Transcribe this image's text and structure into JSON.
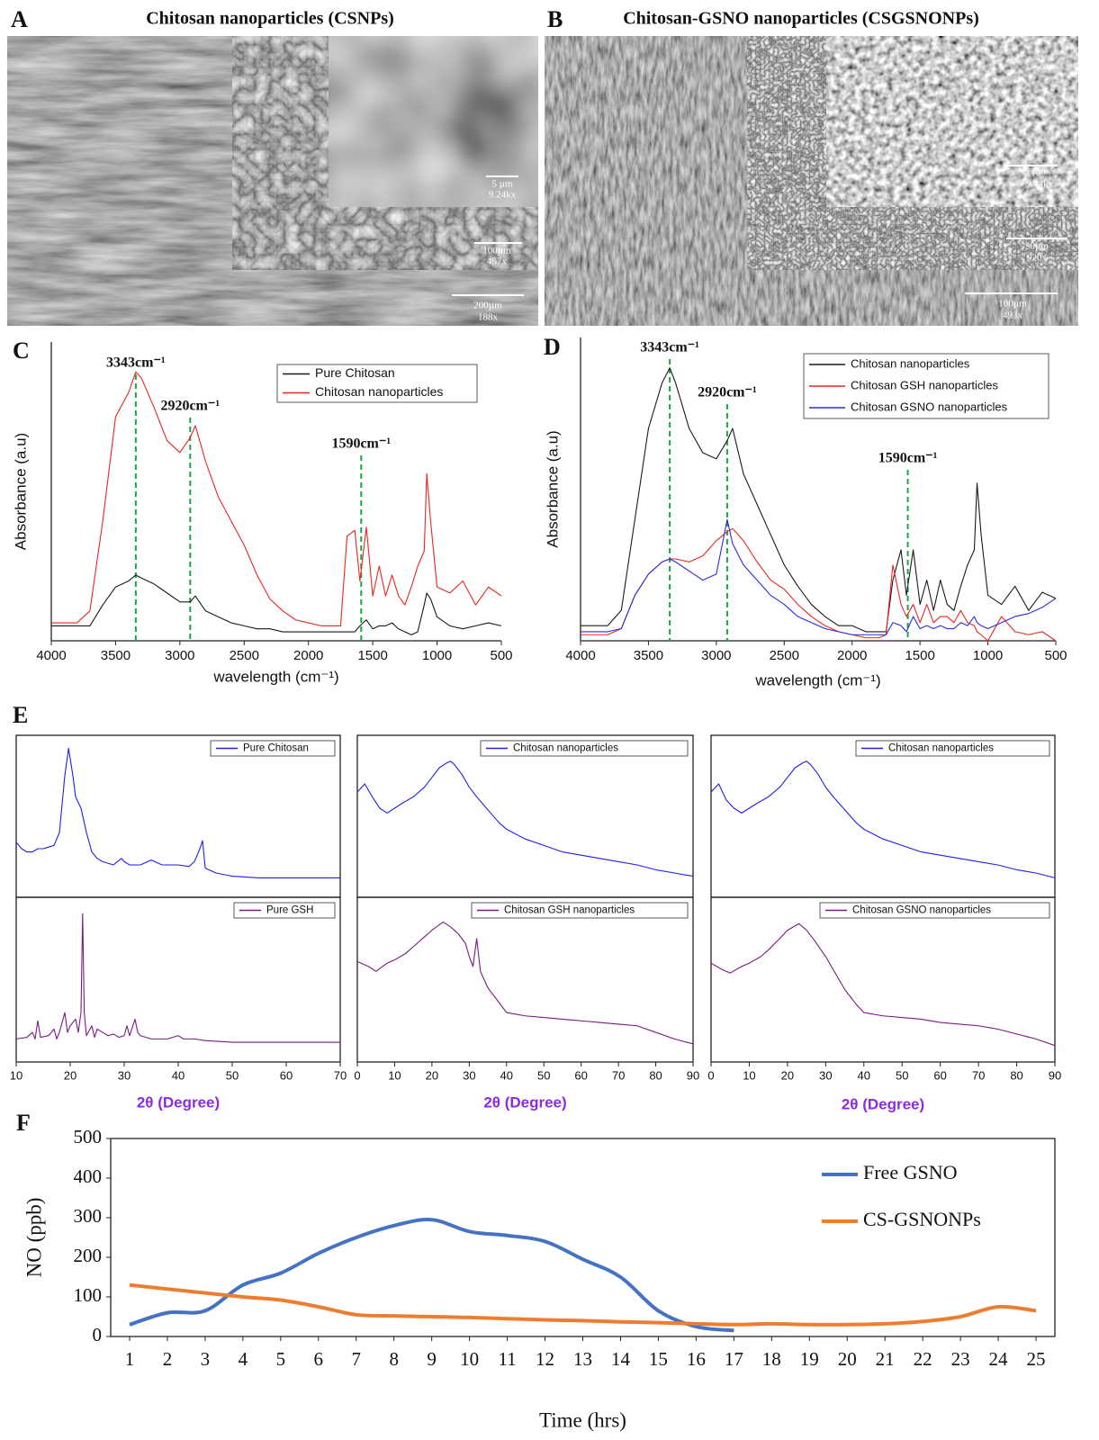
{
  "image_panels": [
    {
      "label": "A",
      "title": "Chitosan nanoparticles (CSNPs)",
      "scale_bars": [
        {
          "length": "200µm",
          "magnification": "188x"
        },
        {
          "length": "100µm",
          "magnification": "457x"
        },
        {
          "length": "5 µm",
          "magnification": "9.24kx"
        }
      ]
    },
    {
      "label": "B",
      "title": "Chitosan-GSNO nanoparticles (CSGSNONPs)",
      "scale_bars": [
        {
          "length": "100µm",
          "magnification": "493x"
        },
        {
          "length": "50µm",
          "magnification": "920x"
        },
        {
          "length": "5 µm",
          "magnification": "9.44kx"
        }
      ]
    }
  ],
  "chart_data": [
    {
      "type": "line",
      "panel_label": "C",
      "xlabel": "wavelength (cm⁻¹)",
      "ylabel": "Absorbance (a.u)",
      "xlim": [
        4000,
        500
      ],
      "xticks": [
        4000,
        3500,
        3000,
        2500,
        2000,
        1500,
        1000,
        500
      ],
      "ylim": [
        0,
        100
      ],
      "legend": "upper right",
      "x": [
        4000,
        3800,
        3700,
        3600,
        3500,
        3400,
        3343,
        3300,
        3200,
        3100,
        3000,
        2920,
        2880,
        2800,
        2700,
        2600,
        2500,
        2400,
        2300,
        2200,
        2100,
        2000,
        1900,
        1800,
        1750,
        1700,
        1640,
        1600,
        1550,
        1500,
        1450,
        1400,
        1350,
        1300,
        1250,
        1200,
        1150,
        1100,
        1080,
        1050,
        1000,
        900,
        800,
        700,
        600,
        500
      ],
      "series": [
        {
          "name": "Pure Chitosan",
          "color": "#1a1a1a",
          "values": [
            5,
            5,
            5,
            12,
            18,
            20,
            22,
            21,
            19,
            16,
            13,
            13,
            15,
            10,
            8,
            6,
            5,
            4,
            4,
            3,
            3,
            3,
            3,
            3,
            3,
            3,
            3,
            5,
            7,
            4,
            5,
            5,
            6,
            4,
            3,
            2,
            3,
            12,
            16,
            14,
            8,
            5,
            4,
            5,
            6,
            5
          ]
        },
        {
          "name": "Chitosan nanoparticles",
          "color": "#e8271e",
          "values": [
            6,
            6,
            10,
            40,
            75,
            83,
            90,
            88,
            78,
            67,
            63,
            68,
            72,
            60,
            48,
            40,
            32,
            22,
            14,
            10,
            7,
            6,
            5,
            5,
            5,
            35,
            37,
            20,
            38,
            15,
            25,
            15,
            22,
            15,
            12,
            18,
            25,
            30,
            56,
            40,
            18,
            16,
            20,
            12,
            18,
            15
          ]
        }
      ],
      "annotations": [
        {
          "text": "3343cm⁻¹",
          "x": 3343
        },
        {
          "text": "2920cm⁻¹",
          "x": 2920
        },
        {
          "text": "1590cm⁻¹",
          "x": 1590
        }
      ]
    },
    {
      "type": "line",
      "panel_label": "D",
      "xlabel": "wavelength (cm⁻¹)",
      "ylabel": "Absorbance (a.u)",
      "xlim": [
        4000,
        500
      ],
      "xticks": [
        4000,
        3500,
        3000,
        2500,
        2000,
        1500,
        1000,
        500
      ],
      "ylim": [
        0,
        100
      ],
      "legend": "upper right",
      "x": [
        4000,
        3800,
        3700,
        3600,
        3500,
        3400,
        3343,
        3300,
        3200,
        3100,
        3000,
        2920,
        2880,
        2800,
        2700,
        2600,
        2500,
        2400,
        2300,
        2200,
        2100,
        2000,
        1900,
        1800,
        1750,
        1700,
        1640,
        1600,
        1550,
        1500,
        1450,
        1400,
        1350,
        1300,
        1250,
        1200,
        1150,
        1100,
        1080,
        1050,
        1000,
        900,
        800,
        700,
        600,
        500
      ],
      "series": [
        {
          "name": "Chitosan nanoparticles",
          "color": "#1a1a1a",
          "values": [
            5,
            5,
            10,
            40,
            70,
            85,
            90,
            85,
            70,
            62,
            60,
            66,
            70,
            55,
            45,
            35,
            25,
            18,
            12,
            8,
            5,
            5,
            3,
            3,
            3,
            20,
            30,
            15,
            30,
            12,
            20,
            10,
            20,
            12,
            10,
            18,
            25,
            30,
            52,
            35,
            15,
            12,
            18,
            10,
            16,
            14
          ]
        },
        {
          "name": "Chitosan GSH nanoparticles",
          "color": "#e8271e",
          "values": [
            2,
            2,
            4,
            15,
            22,
            26,
            27,
            27,
            26,
            28,
            33,
            36,
            37,
            33,
            26,
            20,
            17,
            12,
            8,
            5,
            3,
            2,
            1,
            1,
            2,
            25,
            12,
            8,
            12,
            6,
            12,
            6,
            8,
            8,
            6,
            10,
            6,
            5,
            3,
            2,
            0,
            8,
            3,
            2,
            3,
            0
          ]
        },
        {
          "name": "Chitosan GSNO nanoparticles",
          "color": "#2a2ae0",
          "values": [
            3,
            3,
            4,
            15,
            22,
            26,
            27,
            26,
            23,
            20,
            22,
            40,
            32,
            25,
            20,
            15,
            12,
            8,
            6,
            4,
            3,
            2,
            2,
            2,
            2,
            6,
            5,
            3,
            8,
            4,
            5,
            4,
            5,
            4,
            4,
            6,
            5,
            8,
            6,
            5,
            4,
            6,
            8,
            9,
            11,
            14
          ]
        }
      ],
      "annotations": [
        {
          "text": "3343cm⁻¹",
          "x": 3343
        },
        {
          "text": "2920cm⁻¹",
          "x": 2920
        },
        {
          "text": "1590cm⁻¹",
          "x": 1590
        }
      ]
    },
    {
      "type": "line",
      "panel_label": "E",
      "xlim": [
        10,
        70
      ],
      "ylim": [
        0,
        100
      ],
      "legend": "upper right",
      "x": [
        10,
        11,
        12,
        13,
        14,
        15,
        16,
        17,
        18,
        19,
        19.7,
        20.5,
        21,
        22,
        23,
        24,
        25,
        26,
        28,
        29.5,
        30,
        31,
        33,
        35,
        37,
        40,
        42,
        43,
        44,
        44.5,
        45,
        47,
        50,
        55,
        60,
        65,
        70
      ],
      "series": [
        {
          "name": "Pure Chitosan",
          "color": "#1f1fe6",
          "values": [
            34,
            30,
            28,
            28,
            30,
            30,
            31,
            32,
            40,
            75,
            92,
            75,
            62,
            55,
            40,
            28,
            24,
            22,
            20,
            24,
            22,
            20,
            20,
            23,
            20,
            20,
            19,
            22,
            30,
            35,
            18,
            15,
            13,
            12,
            12,
            12,
            12
          ]
        }
      ]
    },
    {
      "type": "line",
      "xlabel": "2θ (Degree)",
      "xlim": [
        10,
        70
      ],
      "xticks": [
        10,
        20,
        30,
        40,
        50,
        60,
        70
      ],
      "ylim": [
        0,
        100
      ],
      "legend": "upper right",
      "x": [
        10,
        12,
        13,
        13.5,
        14,
        14.5,
        16,
        17,
        17.5,
        18,
        19,
        19.5,
        20,
        21,
        21.5,
        22,
        22.3,
        22.6,
        23,
        24,
        24.5,
        25,
        26,
        27,
        28,
        29,
        30,
        30.5,
        31,
        32,
        32.5,
        33,
        35,
        38,
        40,
        41,
        43,
        45,
        50,
        55,
        60,
        65,
        70
      ],
      "series": [
        {
          "name": "Pure GSH",
          "color": "#7b1a86",
          "values": [
            14,
            15,
            18,
            14,
            25,
            15,
            16,
            20,
            14,
            18,
            30,
            18,
            22,
            26,
            18,
            30,
            90,
            30,
            16,
            22,
            15,
            20,
            18,
            16,
            17,
            15,
            16,
            22,
            16,
            26,
            18,
            16,
            14,
            14,
            16,
            14,
            14,
            13,
            12,
            12,
            12,
            12,
            12
          ]
        }
      ]
    },
    {
      "type": "line",
      "xlim": [
        0,
        90
      ],
      "ylim": [
        0,
        100
      ],
      "legend": "upper right",
      "x": [
        0,
        2,
        4,
        6,
        8,
        10,
        12,
        15,
        18,
        20,
        22,
        24,
        25,
        26,
        28,
        30,
        32,
        35,
        38,
        40,
        45,
        50,
        55,
        60,
        65,
        70,
        75,
        80,
        85,
        90
      ],
      "series": [
        {
          "name": "Chitosan nanoparticles",
          "color": "#1f1fe6",
          "values": [
            65,
            70,
            62,
            55,
            52,
            55,
            58,
            62,
            68,
            74,
            80,
            83,
            84,
            82,
            76,
            68,
            62,
            54,
            46,
            42,
            36,
            32,
            28,
            26,
            24,
            22,
            20,
            17,
            15,
            13
          ]
        }
      ]
    },
    {
      "type": "line",
      "xlabel": "2θ (Degree)",
      "xlim": [
        0,
        90
      ],
      "xticks": [
        0,
        10,
        20,
        30,
        40,
        50,
        60,
        70,
        80,
        90
      ],
      "ylim": [
        0,
        100
      ],
      "legend": "upper right",
      "x": [
        0,
        3,
        5,
        8,
        10,
        13,
        15,
        18,
        20,
        23,
        25,
        27,
        29,
        30,
        31,
        32,
        33,
        35,
        38,
        40,
        45,
        50,
        55,
        60,
        65,
        70,
        75,
        80,
        85,
        90
      ],
      "series": [
        {
          "name": "Chitosan GSH nanoparticles",
          "color": "#7b1a86",
          "values": [
            61,
            58,
            55,
            60,
            62,
            66,
            70,
            76,
            80,
            85,
            82,
            78,
            72,
            64,
            58,
            75,
            55,
            45,
            36,
            30,
            28,
            27,
            26,
            25,
            24,
            23,
            22,
            18,
            14,
            11
          ]
        }
      ]
    },
    {
      "type": "line",
      "xlim": [
        0,
        90
      ],
      "ylim": [
        0,
        100
      ],
      "legend": "upper right",
      "x": [
        0,
        2,
        4,
        6,
        8,
        10,
        12,
        15,
        18,
        20,
        22,
        24,
        25,
        26,
        28,
        30,
        32,
        35,
        38,
        40,
        45,
        50,
        55,
        60,
        65,
        70,
        75,
        80,
        85,
        90
      ],
      "series": [
        {
          "name": "Chitosan nanoparticles",
          "color": "#1f1fe6",
          "values": [
            65,
            70,
            60,
            55,
            52,
            55,
            58,
            62,
            68,
            74,
            80,
            83,
            84,
            82,
            76,
            68,
            62,
            54,
            46,
            42,
            36,
            32,
            28,
            26,
            24,
            22,
            20,
            17,
            15,
            12
          ]
        }
      ]
    },
    {
      "type": "line",
      "xlabel": "2θ (Degree)",
      "xlim": [
        0,
        90
      ],
      "xticks": [
        0,
        10,
        20,
        30,
        40,
        50,
        60,
        70,
        80,
        90
      ],
      "ylim": [
        0,
        100
      ],
      "legend": "upper right",
      "x": [
        0,
        3,
        5,
        8,
        10,
        13,
        15,
        18,
        20,
        23,
        25,
        27,
        30,
        33,
        35,
        38,
        40,
        45,
        50,
        55,
        60,
        65,
        70,
        75,
        80,
        85,
        90
      ],
      "series": [
        {
          "name": "Chitosan GSNO nanoparticles",
          "color": "#7b1a86",
          "values": [
            60,
            56,
            54,
            58,
            60,
            64,
            68,
            75,
            80,
            84,
            80,
            74,
            64,
            52,
            44,
            35,
            30,
            28,
            27,
            26,
            24,
            23,
            22,
            20,
            17,
            14,
            10
          ]
        }
      ]
    },
    {
      "type": "line",
      "panel_label": "F",
      "smooth": true,
      "xlabel": "Time (hrs)",
      "ylabel": "NO (ppb)",
      "xlim": [
        0.5,
        25.5
      ],
      "xticks": [
        1,
        2,
        3,
        4,
        5,
        6,
        7,
        8,
        9,
        10,
        11,
        12,
        13,
        14,
        15,
        16,
        17,
        18,
        19,
        20,
        21,
        22,
        23,
        24,
        25
      ],
      "ylim": [
        0,
        500
      ],
      "yticks": [
        0,
        100,
        200,
        300,
        400,
        500
      ],
      "legend": "upper right",
      "x": [
        1,
        2,
        3,
        4,
        5,
        6,
        7,
        8,
        9,
        10,
        11,
        12,
        13,
        14,
        15,
        16,
        17,
        18,
        19,
        20,
        21,
        22,
        23,
        24,
        25
      ],
      "series": [
        {
          "name": "Free GSNO",
          "color": "#4472c4",
          "values": [
            30,
            60,
            65,
            130,
            160,
            210,
            250,
            280,
            295,
            265,
            255,
            240,
            195,
            150,
            65,
            25,
            15,
            null,
            null,
            null,
            null,
            null,
            null,
            null,
            null
          ]
        },
        {
          "name": "CS-GSNONPs",
          "color": "#ed7d31",
          "values": [
            130,
            120,
            110,
            100,
            92,
            75,
            55,
            52,
            50,
            48,
            45,
            42,
            40,
            37,
            35,
            32,
            30,
            32,
            30,
            30,
            32,
            38,
            50,
            75,
            65
          ]
        }
      ]
    }
  ]
}
